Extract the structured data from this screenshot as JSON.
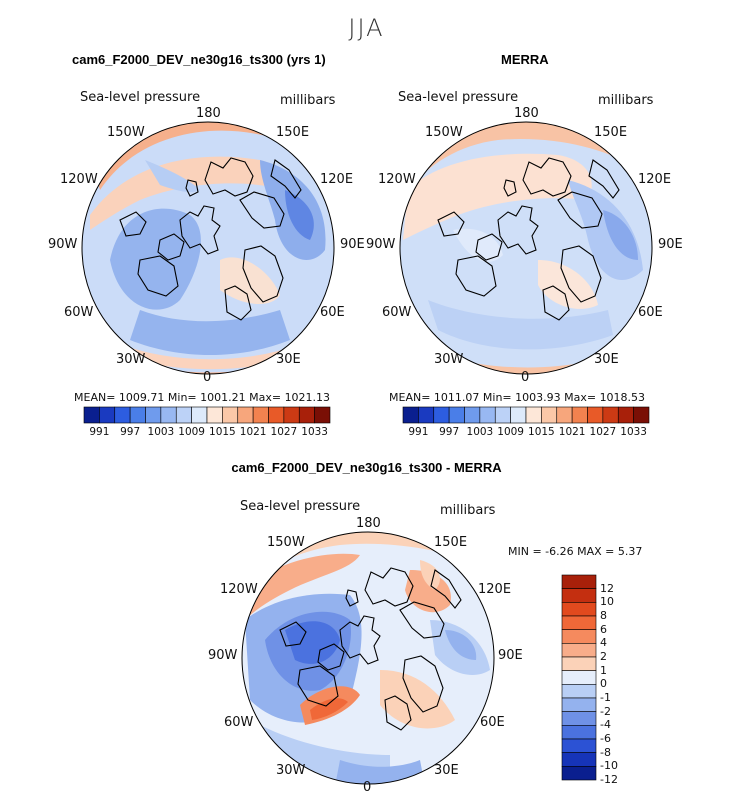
{
  "season": "JJA",
  "panels": [
    {
      "title": "cam6_F2000_DEV_ne30g16_ts300 (yrs 1)",
      "variable": "Sea-level pressure",
      "units": "millibars",
      "stats": "MEAN= 1009.71    Min=  1001.21    Max= 1021.13"
    },
    {
      "title": "MERRA",
      "variable": "Sea-level pressure",
      "units": "millibars",
      "stats": "MEAN= 1011.07    Min=  1003.93    Max=  1018.53"
    },
    {
      "title": "cam6_F2000_DEV_ne30g16_ts300 - MERRA",
      "variable": "Sea-level pressure",
      "units": "millibars",
      "stats": "MIN =   -6.26  MAX =     5.37"
    }
  ],
  "longitude_labels": {
    "north": "180",
    "south": "0",
    "east": "90E",
    "west": "90W",
    "ne_upper": "150E",
    "ne_lower": "120E",
    "se_upper": "60E",
    "se_lower": "30E",
    "nw_upper": "150W",
    "nw_lower": "120W",
    "sw_upper": "60W",
    "sw_lower": "30W"
  },
  "colorbar_abs": {
    "labels": [
      "991",
      "997",
      "1003",
      "1009",
      "1015",
      "1021",
      "1027",
      "1033"
    ],
    "colors": [
      "#0a1f8f",
      "#1a3ac0",
      "#2d5de0",
      "#4a7ee8",
      "#6f9bed",
      "#98b8f2",
      "#bcd2f7",
      "#ddeafb",
      "#fde7d8",
      "#fbc8a8",
      "#f7a67c",
      "#f2824f",
      "#e85a28",
      "#cc3a14",
      "#a8200a",
      "#7a0f05"
    ]
  },
  "colorbar_diff": {
    "labels": [
      "12",
      "10",
      "8",
      "6",
      "4",
      "2",
      "1",
      "0",
      "-1",
      "-2",
      "-4",
      "-6",
      "-8",
      "-10",
      "-12"
    ],
    "colors": [
      "#a8200a",
      "#c42f10",
      "#e24a1e",
      "#f06838",
      "#f58a5e",
      "#f8ad8a",
      "#fbd2b8",
      "#e6eefb",
      "#b9cff5",
      "#94b2ee",
      "#6f91e6",
      "#4b72df",
      "#2c52d4",
      "#1634b8",
      "#0a1f8f"
    ]
  },
  "chart_data": [
    {
      "type": "heatmap",
      "projection": "north polar stereographic",
      "title": "cam6_F2000_DEV_ne30g16_ts300 (yrs 1)",
      "field": "Sea-level pressure",
      "units": "millibars",
      "mean": 1009.71,
      "min": 1001.21,
      "max": 1021.13,
      "contour_levels": [
        991,
        994,
        997,
        1000,
        1003,
        1006,
        1009,
        1012,
        1015,
        1018,
        1021,
        1024,
        1027,
        1030,
        1033
      ]
    },
    {
      "type": "heatmap",
      "projection": "north polar stereographic",
      "title": "MERRA",
      "field": "Sea-level pressure",
      "units": "millibars",
      "mean": 1011.07,
      "min": 1003.93,
      "max": 1018.53,
      "contour_levels": [
        991,
        994,
        997,
        1000,
        1003,
        1006,
        1009,
        1012,
        1015,
        1018,
        1021,
        1024,
        1027,
        1030,
        1033
      ]
    },
    {
      "type": "heatmap",
      "projection": "north polar stereographic",
      "title": "cam6_F2000_DEV_ne30g16_ts300 - MERRA",
      "field": "Sea-level pressure",
      "units": "millibars",
      "min": -6.26,
      "max": 5.37,
      "contour_levels": [
        -12,
        -10,
        -8,
        -6,
        -4,
        -2,
        -1,
        0,
        1,
        2,
        4,
        6,
        8,
        10,
        12
      ]
    }
  ]
}
